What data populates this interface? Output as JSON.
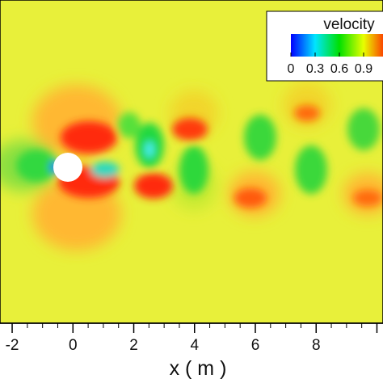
{
  "chart_data": {
    "type": "heatmap",
    "title": "",
    "xlabel": "x ( m )",
    "ylabel": "",
    "xlim": [
      -2.4,
      10.2
    ],
    "x_ticks": [
      "-2",
      "0",
      "2",
      "4",
      "6",
      "8"
    ],
    "x_tick_values": [
      -2,
      0,
      2,
      4,
      6,
      8
    ],
    "grid": false,
    "field": "velocity",
    "colorbar": {
      "title": "velocity",
      "tick_labels": [
        "0",
        "0.3",
        "0.6",
        "0.9"
      ],
      "tick_values": [
        0,
        0.3,
        0.6,
        0.9
      ],
      "range": [
        0,
        1.2
      ],
      "colormap": [
        "#0000ff",
        "#00e5ff",
        "#00e000",
        "#e8ff00",
        "#ff1a00"
      ],
      "placement": "top-right"
    },
    "background_value": 0.95,
    "obstacle": {
      "shape": "circle",
      "x": 0,
      "y": 0,
      "diameter": 1
    }
  }
}
